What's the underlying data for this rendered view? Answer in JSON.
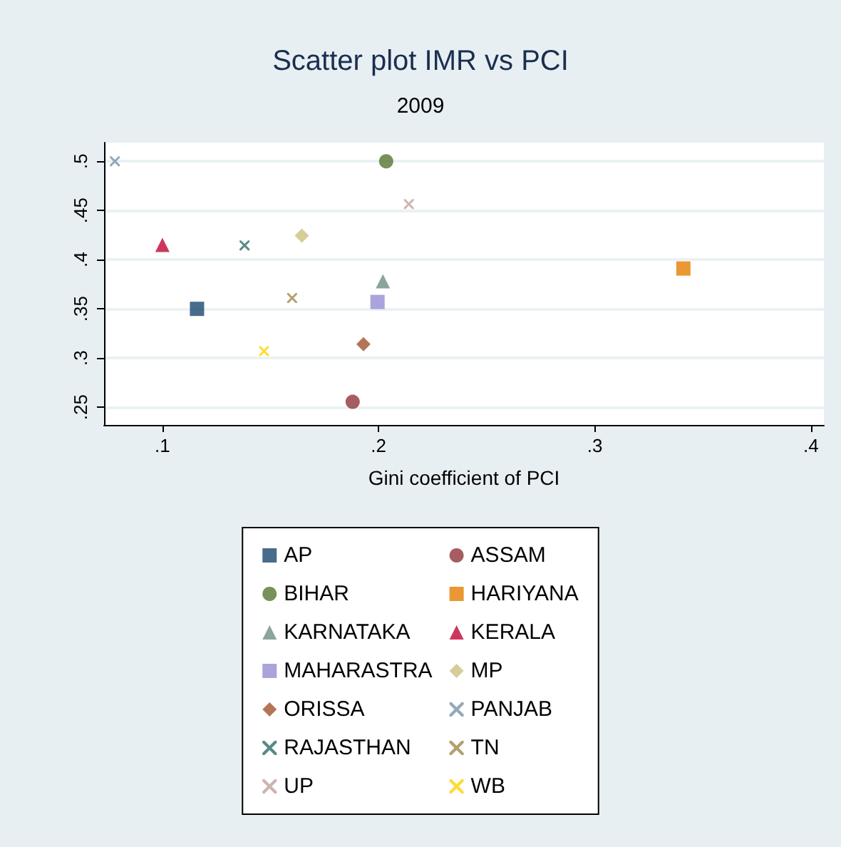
{
  "chart_data": {
    "type": "scatter",
    "title": "Scatter plot IMR vs PCI",
    "subtitle": "2009",
    "xlabel": "Gini coefficient of PCI",
    "xlim": [
      0.073,
      0.406
    ],
    "xticks": [
      {
        "value": 0.1,
        "label": ".1"
      },
      {
        "value": 0.2,
        "label": ".2"
      },
      {
        "value": 0.3,
        "label": ".3"
      },
      {
        "value": 0.4,
        "label": ".4"
      }
    ],
    "ylim": [
      0.232,
      0.519
    ],
    "yticks": [
      {
        "value": 0.25,
        "label": ".25"
      },
      {
        "value": 0.3,
        "label": ".3"
      },
      {
        "value": 0.35,
        "label": ".35"
      },
      {
        "value": 0.4,
        "label": ".4"
      },
      {
        "value": 0.45,
        "label": ".45"
      },
      {
        "value": 0.5,
        "label": ".5"
      }
    ],
    "grid": "y",
    "legend": "bottom",
    "series": [
      {
        "name": "AP",
        "color": "#1a476f",
        "marker": "square",
        "x": [
          0.116
        ],
        "values": [
          0.35
        ]
      },
      {
        "name": "BIHAR",
        "color": "#55752f",
        "marker": "circle",
        "x": [
          0.2035
        ],
        "values": [
          0.5
        ]
      },
      {
        "name": "KARNATAKA",
        "color": "#6e8e84",
        "marker": "triangle",
        "x": [
          0.202
        ],
        "values": [
          0.378
        ]
      },
      {
        "name": "MAHARASTRA",
        "color": "#938dd2",
        "marker": "square",
        "x": [
          0.1995
        ],
        "values": [
          0.357
        ]
      },
      {
        "name": "ORISSA",
        "color": "#a0522d",
        "marker": "diamond",
        "x": [
          0.193
        ],
        "values": [
          0.314
        ]
      },
      {
        "name": "RAJASTHAN",
        "color": "#2d6d66",
        "marker": "cross",
        "x": [
          0.138
        ],
        "values": [
          0.4145
        ]
      },
      {
        "name": "UP",
        "color": "#bfa19c",
        "marker": "cross",
        "x": [
          0.214
        ],
        "values": [
          0.4565
        ]
      },
      {
        "name": "ASSAM",
        "color": "#90353b",
        "marker": "circle",
        "x": [
          0.188
        ],
        "values": [
          0.2555
        ]
      },
      {
        "name": "HARIYANA",
        "color": "#e37e00",
        "marker": "square",
        "x": [
          0.341
        ],
        "values": [
          0.391
        ]
      },
      {
        "name": "KERALA",
        "color": "#c10534",
        "marker": "triangle",
        "x": [
          0.1
        ],
        "values": [
          0.415
        ]
      },
      {
        "name": "MP",
        "color": "#cac27e",
        "marker": "diamond",
        "x": [
          0.1645
        ],
        "values": [
          0.4245
        ]
      },
      {
        "name": "PANJAB",
        "color": "#7b92a8",
        "marker": "cross",
        "x": [
          0.078
        ],
        "values": [
          0.5
        ]
      },
      {
        "name": "TN",
        "color": "#9c8847",
        "marker": "cross",
        "x": [
          0.16
        ],
        "values": [
          0.361
        ]
      },
      {
        "name": "WB",
        "color": "#ffd200",
        "marker": "cross",
        "x": [
          0.147
        ],
        "values": [
          0.307
        ]
      }
    ]
  }
}
